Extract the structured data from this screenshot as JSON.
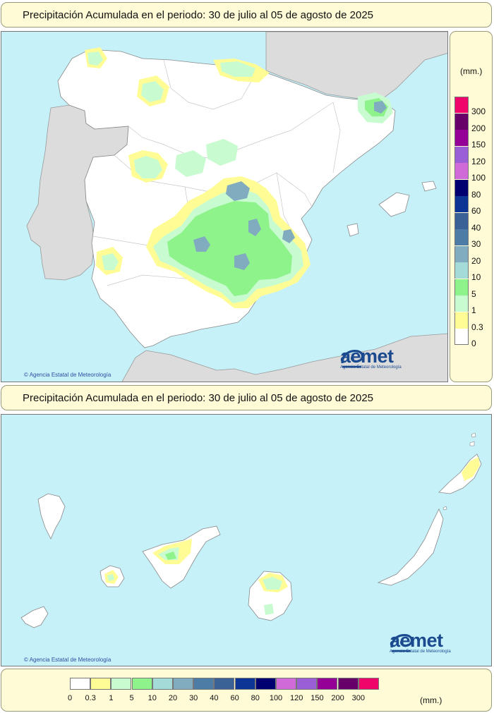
{
  "top_title": "Precipitación Acumulada en el periodo: 30 de julio al 05 de agosto de 2025",
  "bottom_title": "Precipitación Acumulada en el periodo: 30 de julio al 05 de agosto de 2025",
  "unit": "(mm.)",
  "credit": "Agencia Estatal de Meteorología",
  "logo": {
    "name": "aemet",
    "subtitle": "Agencia Estatal de Meteorología",
    "icon": "aemet-spiral-icon"
  },
  "colors": {
    "sea": "#c6f1f9",
    "land": "#ffffff",
    "neighbour": "#dcdcdc",
    "panel": "#fffbd6",
    "brand": "#1b4a8f"
  },
  "legend": {
    "vertical_labels": [
      "300",
      "200",
      "150",
      "120",
      "100",
      "80",
      "60",
      "40",
      "30",
      "20",
      "10",
      "5",
      "1",
      "0.3",
      "0"
    ],
    "vertical_colors": [
      "#f0066a",
      "#680069",
      "#950097",
      "#9a5ed6",
      "#cf6ad8",
      "#000070",
      "#0d3596",
      "#3a6296",
      "#4d7da6",
      "#81acc0",
      "#a4dbd8",
      "#8df38a",
      "#c8fcd0",
      "#fffc96",
      "#ffffff"
    ],
    "horizontal_labels": [
      "0",
      "0.3",
      "1",
      "5",
      "10",
      "20",
      "30",
      "40",
      "60",
      "80",
      "100",
      "120",
      "150",
      "200",
      "300"
    ],
    "horizontal_colors": [
      "#ffffff",
      "#fffc96",
      "#c8fcd0",
      "#8df38a",
      "#a4dbd8",
      "#81acc0",
      "#4d7da6",
      "#3a6296",
      "#0d3596",
      "#000070",
      "#cf6ad8",
      "#9a5ed6",
      "#950097",
      "#680069",
      "#f0066a"
    ]
  }
}
